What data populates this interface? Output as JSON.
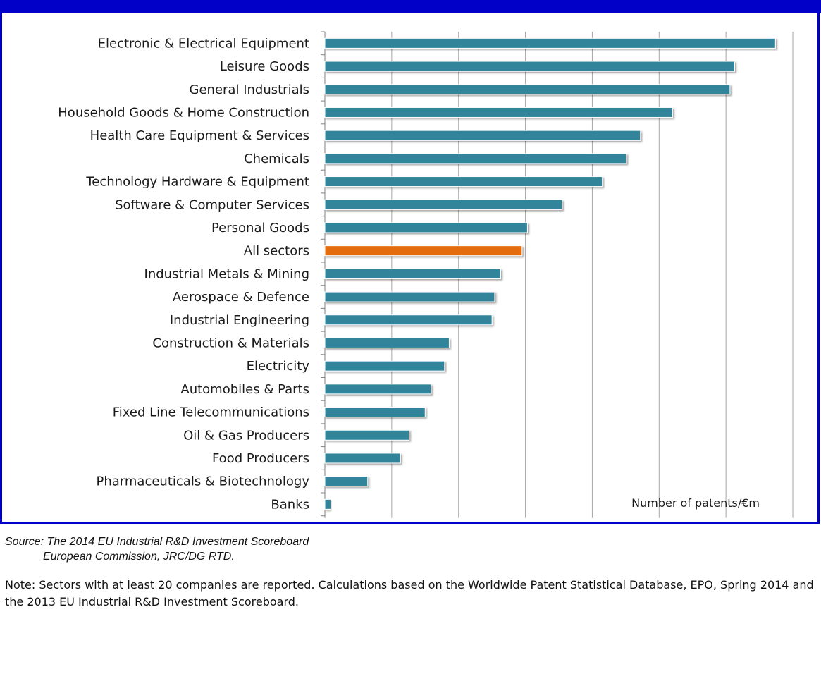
{
  "colors": {
    "frame": "#0000c8",
    "bar": "#31849b",
    "highlight_bar": "#e46c0a",
    "grid": "#a6a6a6"
  },
  "chart_data": {
    "type": "bar",
    "orientation": "horizontal",
    "categories": [
      "Electronic & Electrical Equipment",
      "Leisure Goods",
      "General Industrials",
      "Household Goods & Home Construction",
      "Health Care Equipment & Services",
      "Chemicals",
      "Technology Hardware & Equipment",
      "Software & Computer Services",
      "Personal Goods",
      "All sectors",
      "Industrial Metals & Mining",
      "Aerospace & Defence",
      "Industrial Engineering",
      "Construction & Materials",
      "Electricity",
      "Automobiles & Parts",
      "Fixed Line Telecommunications",
      "Oil & Gas Producers",
      "Food Producers",
      "Pharmaceuticals & Biotechnology",
      "Banks"
    ],
    "values": [
      0.674,
      0.613,
      0.606,
      0.52,
      0.472,
      0.451,
      0.415,
      0.355,
      0.303,
      0.295,
      0.263,
      0.254,
      0.25,
      0.186,
      0.179,
      0.159,
      0.15,
      0.126,
      0.113,
      0.064,
      0.009
    ],
    "highlight_category": "All sectors",
    "xlim": [
      0,
      0.7
    ],
    "x_ticks": [
      "0.0",
      "0.1",
      "0.2",
      "0.3",
      "0.4",
      "0.5",
      "0.6",
      "0.7"
    ],
    "xlabel": "Number of patents/€m",
    "grid": "vertical",
    "legend": "none"
  },
  "source": {
    "line1": "Source: The 2014 EU Industrial R&D Investment Scoreboard",
    "line2": "European Commission, JRC/DG RTD."
  },
  "note": "Note: Sectors with at least 20 companies are reported. Calculations based on the Worldwide Patent Statistical Database, EPO, Spring 2014 and the 2013 EU Industrial R&D Investment Scoreboard."
}
